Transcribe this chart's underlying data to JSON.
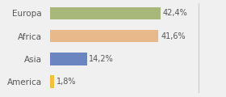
{
  "categories": [
    "Europa",
    "Africa",
    "Asia",
    "America"
  ],
  "values": [
    42.4,
    41.6,
    14.2,
    1.8
  ],
  "labels": [
    "42,4%",
    "41,6%",
    "14,2%",
    "1,8%"
  ],
  "colors": [
    "#a8b87a",
    "#e8b98a",
    "#6a85c0",
    "#f0c040"
  ],
  "background_color": "#f0f0f0",
  "xlim": [
    0,
    57
  ],
  "bar_height": 0.55,
  "label_fontsize": 7.0,
  "tick_fontsize": 7.5
}
